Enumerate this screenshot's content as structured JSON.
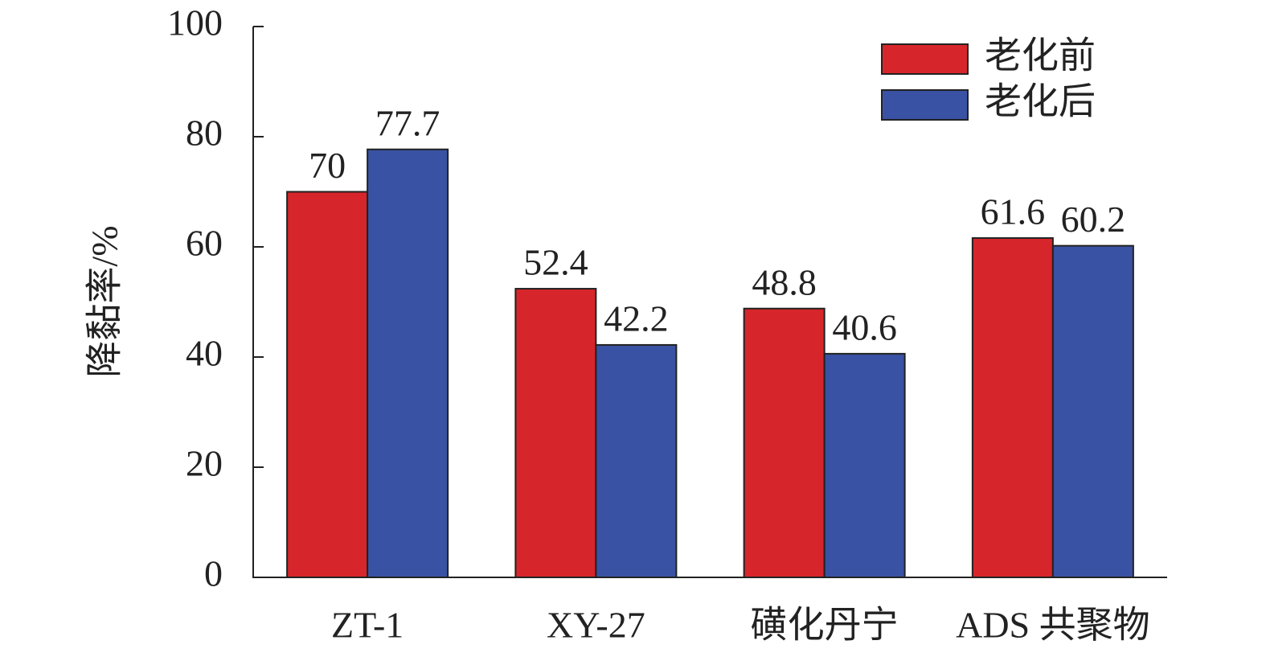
{
  "chart_data": {
    "type": "bar",
    "y_label": "降黏率/%",
    "categories": [
      "ZT-1",
      "XY-27",
      "磺化丹宁",
      "ADS 共聚物"
    ],
    "series": [
      {
        "name": "老化前",
        "color": "#d7262b",
        "values": [
          70,
          52.4,
          48.8,
          61.6
        ]
      },
      {
        "name": "老化后",
        "color": "#3a52a3",
        "values": [
          77.7,
          42.2,
          40.6,
          60.2
        ]
      }
    ],
    "ylim": [
      0,
      100
    ],
    "yticks": [
      0,
      20,
      40,
      60,
      80,
      100
    ],
    "grid": false,
    "legend": "top-right"
  }
}
